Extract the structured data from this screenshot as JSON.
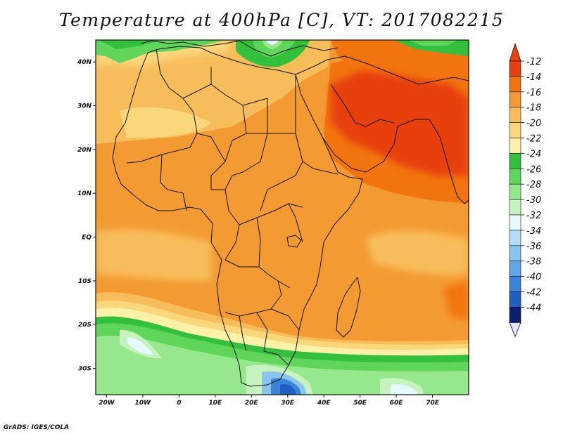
{
  "title": "Temperature at 400hPa [C], VT: 2017082215",
  "credit": "GrADS: IGES/COLA",
  "map": {
    "lon_range": [
      -23,
      80
    ],
    "lat_range": [
      -36,
      45
    ],
    "lon_ticks": [
      {
        "value": -20,
        "label": "20W"
      },
      {
        "value": -10,
        "label": "10W"
      },
      {
        "value": 0,
        "label": "0"
      },
      {
        "value": 10,
        "label": "10E"
      },
      {
        "value": 20,
        "label": "20E"
      },
      {
        "value": 30,
        "label": "30E"
      },
      {
        "value": 40,
        "label": "40E"
      },
      {
        "value": 50,
        "label": "50E"
      },
      {
        "value": 60,
        "label": "60E"
      },
      {
        "value": 70,
        "label": "70E"
      }
    ],
    "lat_ticks": [
      {
        "value": 40,
        "label": "40N"
      },
      {
        "value": 30,
        "label": "30N"
      },
      {
        "value": 20,
        "label": "20N"
      },
      {
        "value": 10,
        "label": "10N"
      },
      {
        "value": 0,
        "label": "EQ"
      },
      {
        "value": -10,
        "label": "10S"
      },
      {
        "value": -20,
        "label": "20S"
      },
      {
        "value": -30,
        "label": "30S"
      }
    ]
  },
  "colorbar": {
    "levels": [
      {
        "label": "-12",
        "color": "#e8400f"
      },
      {
        "label": "-14",
        "color": "#f2740e"
      },
      {
        "label": "-16",
        "color": "#f49a33"
      },
      {
        "label": "-18",
        "color": "#f7bd5a"
      },
      {
        "label": "-20",
        "color": "#fbd77c"
      },
      {
        "label": "-22",
        "color": "#fdf1a8"
      },
      {
        "label": "-24",
        "color": "#33c13d"
      },
      {
        "label": "-26",
        "color": "#5fd65a"
      },
      {
        "label": "-28",
        "color": "#97e88d"
      },
      {
        "label": "-30",
        "color": "#c7f3c1"
      },
      {
        "label": "-32",
        "color": "#e7fafb"
      },
      {
        "label": "-34",
        "color": "#b3dcf7"
      },
      {
        "label": "-36",
        "color": "#8cc4f0"
      },
      {
        "label": "-38",
        "color": "#5fa5e8"
      },
      {
        "label": "-40",
        "color": "#3b84dc"
      },
      {
        "label": "-42",
        "color": "#1f5fc4"
      },
      {
        "label": "-44",
        "color": "#143fa0"
      }
    ],
    "top_color": "#e8400f",
    "bottom_color": "#0c1f6e",
    "min_color": "#e3e3f8"
  }
}
